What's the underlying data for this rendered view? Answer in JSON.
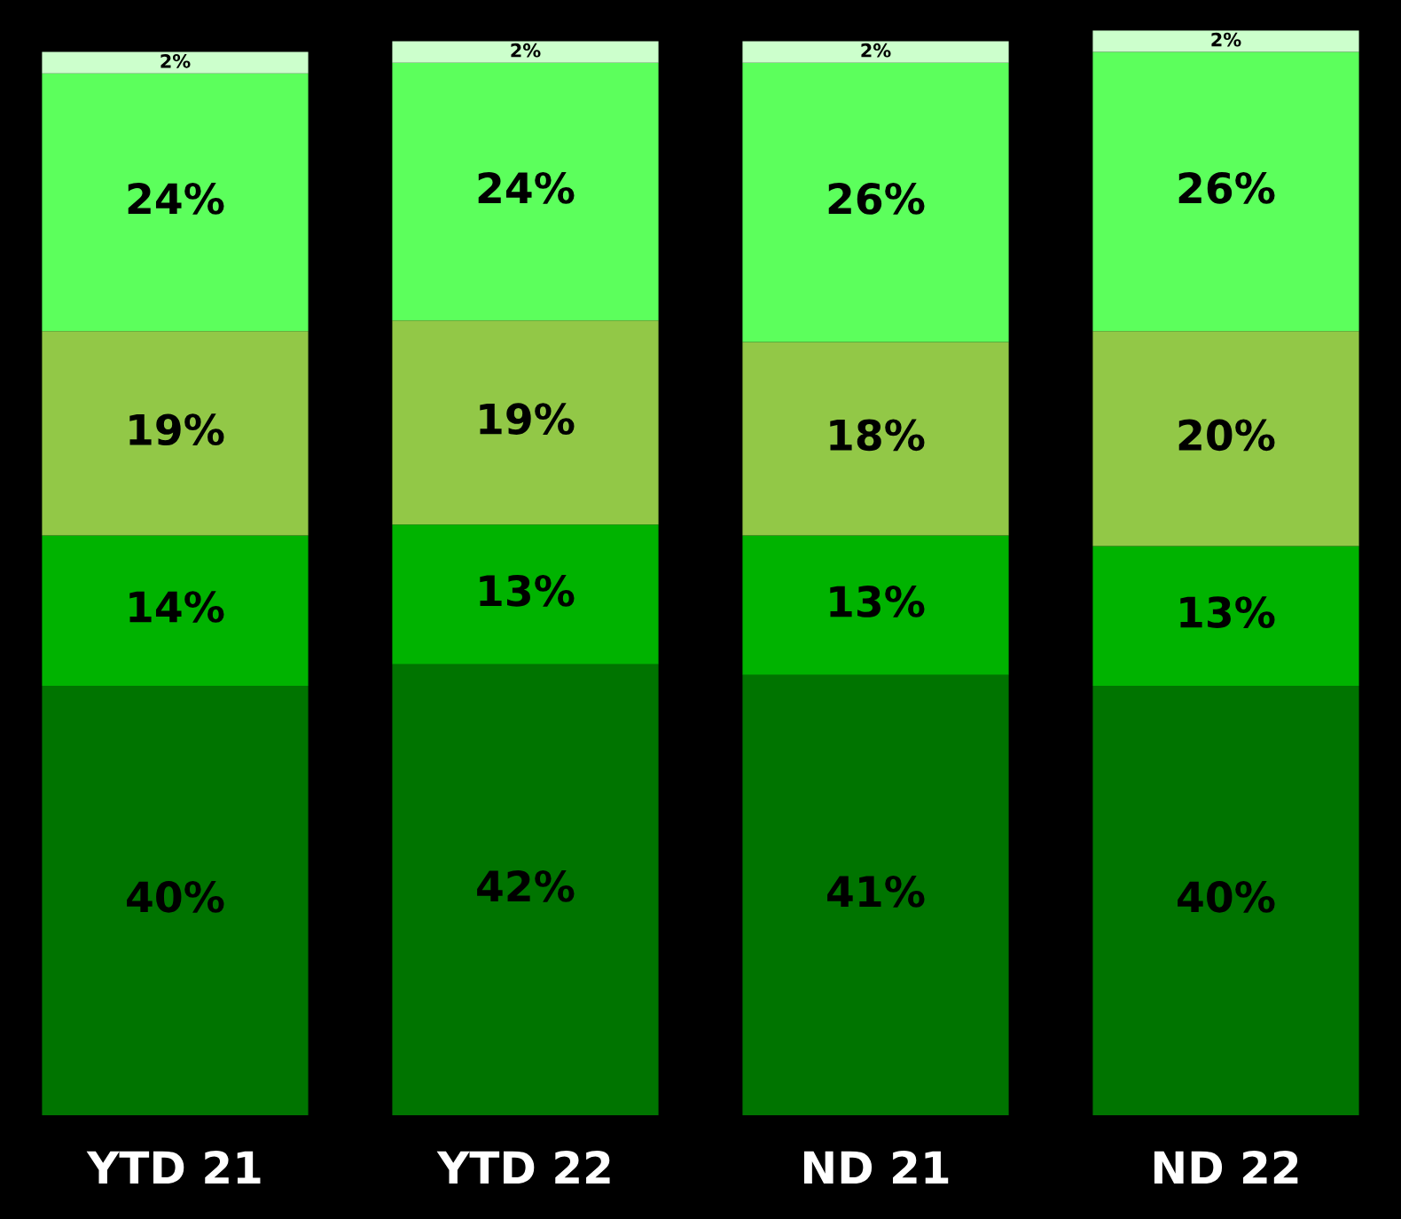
{
  "chart_data": {
    "type": "bar",
    "stacked": true,
    "categories": [
      "YTD 21",
      "YTD 22",
      "ND 21",
      "ND 22"
    ],
    "series": [
      {
        "color": "#007400",
        "values": [
          40,
          42,
          41,
          40
        ],
        "value_labels": [
          "40%",
          "42%",
          "41%",
          "40%"
        ]
      },
      {
        "color": "#00b300",
        "values": [
          14,
          13,
          13,
          13
        ],
        "value_labels": [
          "14%",
          "13%",
          "13%",
          "13%"
        ]
      },
      {
        "color": "#92c847",
        "values": [
          19,
          19,
          18,
          20
        ],
        "value_labels": [
          "19%",
          "19%",
          "18%",
          "20%"
        ]
      },
      {
        "color": "#5cff5c",
        "values": [
          24,
          24,
          26,
          26
        ],
        "value_labels": [
          "24%",
          "24%",
          "26%",
          "26%"
        ]
      },
      {
        "color": "#ccffcc",
        "values": [
          2,
          2,
          2,
          2
        ],
        "value_labels": [
          "2%",
          "2%",
          "2%",
          "2%"
        ]
      }
    ],
    "legend": false,
    "grid": false
  }
}
